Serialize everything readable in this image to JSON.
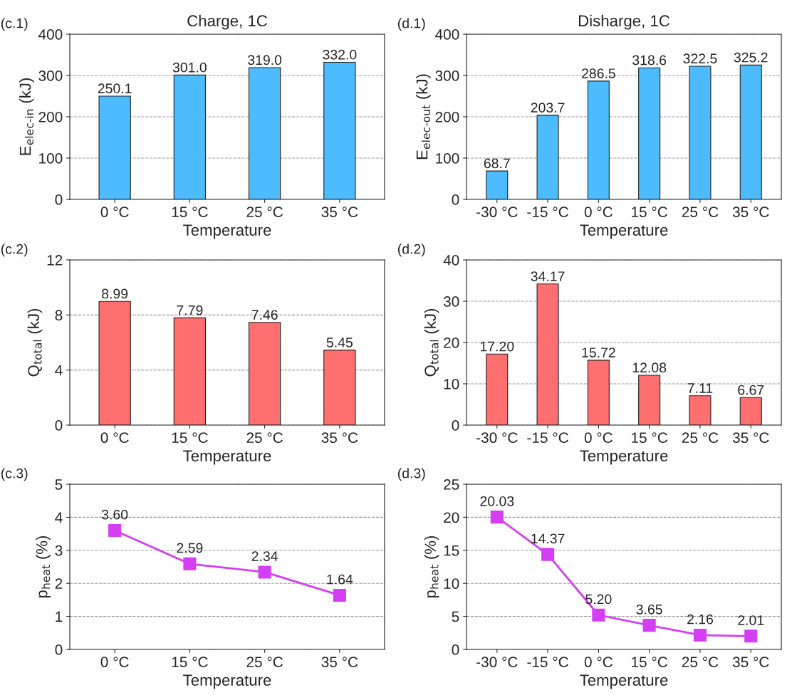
{
  "chart_data": [
    {
      "type": "bar",
      "title": "Charge, 1C",
      "xlabel": "Temperature",
      "ylabel": "E$_{elec-in}$ (kJ)",
      "annotations": [
        "(c.1)"
      ],
      "categories": [
        "0 °C",
        "15 °C",
        "25 °C",
        "35 °C"
      ],
      "values": [
        250.1,
        301.0,
        319.0,
        332.0
      ],
      "value_labels": [
        "250.1",
        "301.0",
        "319.0",
        "332.0"
      ],
      "color": "#4dbcff",
      "ylim": [
        0,
        400
      ],
      "yticks": [
        0,
        100,
        200,
        300,
        400
      ],
      "grid": "y"
    },
    {
      "type": "bar",
      "title": "Disharge, 1C",
      "xlabel": "Temperature",
      "ylabel": "E$_{elec-out}$ (kJ)",
      "annotations": [
        "(d.1)"
      ],
      "categories": [
        "-30 °C",
        "-15 °C",
        "0 °C",
        "15 °C",
        "25 °C",
        "35 °C"
      ],
      "values": [
        68.7,
        203.7,
        286.5,
        318.6,
        322.5,
        325.2
      ],
      "value_labels": [
        "68.7",
        "203.7",
        "286.5",
        "318.6",
        "322.5",
        "325.2"
      ],
      "color": "#4dbcff",
      "ylim": [
        0,
        400
      ],
      "yticks": [
        0,
        100,
        200,
        300,
        400
      ],
      "grid": "y"
    },
    {
      "type": "bar",
      "xlabel": "Temperature",
      "ylabel": "Q$_{total}$ (kJ)",
      "annotations": [
        "(c.2)"
      ],
      "categories": [
        "0 °C",
        "15 °C",
        "25 °C",
        "35 °C"
      ],
      "values": [
        8.99,
        7.79,
        7.46,
        5.45
      ],
      "value_labels": [
        "8.99",
        "7.79",
        "7.46",
        "5.45"
      ],
      "color": "#ff6f6f",
      "ylim": [
        0,
        12
      ],
      "yticks": [
        0,
        4,
        8,
        12
      ],
      "grid": "y"
    },
    {
      "type": "bar",
      "xlabel": "Temperature",
      "ylabel": "Q$_{total}$ (kJ)",
      "annotations": [
        "(d.2)"
      ],
      "categories": [
        "-30 °C",
        "-15 °C",
        "0 °C",
        "15 °C",
        "25 °C",
        "35 °C"
      ],
      "values": [
        17.2,
        34.17,
        15.72,
        12.08,
        7.11,
        6.67
      ],
      "value_labels": [
        "17.20",
        "34.17",
        "15.72",
        "12.08",
        "7.11",
        "6.67"
      ],
      "color": "#ff6f6f",
      "ylim": [
        0,
        40
      ],
      "yticks": [
        0,
        10,
        20,
        30,
        40
      ],
      "grid": "y"
    },
    {
      "type": "line",
      "xlabel": "Temperature",
      "ylabel": "p$_{heat}$ (%)",
      "annotations": [
        "(c.3)"
      ],
      "categories": [
        "0 °C",
        "15 °C",
        "25 °C",
        "35 °C"
      ],
      "values": [
        3.6,
        2.59,
        2.34,
        1.64
      ],
      "value_labels": [
        "3.60",
        "2.59",
        "2.34",
        "1.64"
      ],
      "color": "#d43ef5",
      "marker": "square",
      "ylim": [
        0,
        5
      ],
      "yticks": [
        0,
        1,
        2,
        3,
        4,
        5
      ],
      "grid": "y"
    },
    {
      "type": "line",
      "xlabel": "Temperature",
      "ylabel": "p$_{heat}$ (%)",
      "annotations": [
        "(d.3)"
      ],
      "categories": [
        "-30 °C",
        "-15 °C",
        "0 °C",
        "15 °C",
        "25 °C",
        "35 °C"
      ],
      "values": [
        20.03,
        14.37,
        5.2,
        3.65,
        2.16,
        2.01
      ],
      "value_labels": [
        "20.03",
        "14.37",
        "5.20",
        "3.65",
        "2.16",
        "2.01"
      ],
      "color": "#d43ef5",
      "marker": "square",
      "ylim": [
        0,
        25
      ],
      "yticks": [
        0,
        5,
        10,
        15,
        20,
        25
      ],
      "grid": "y"
    }
  ]
}
